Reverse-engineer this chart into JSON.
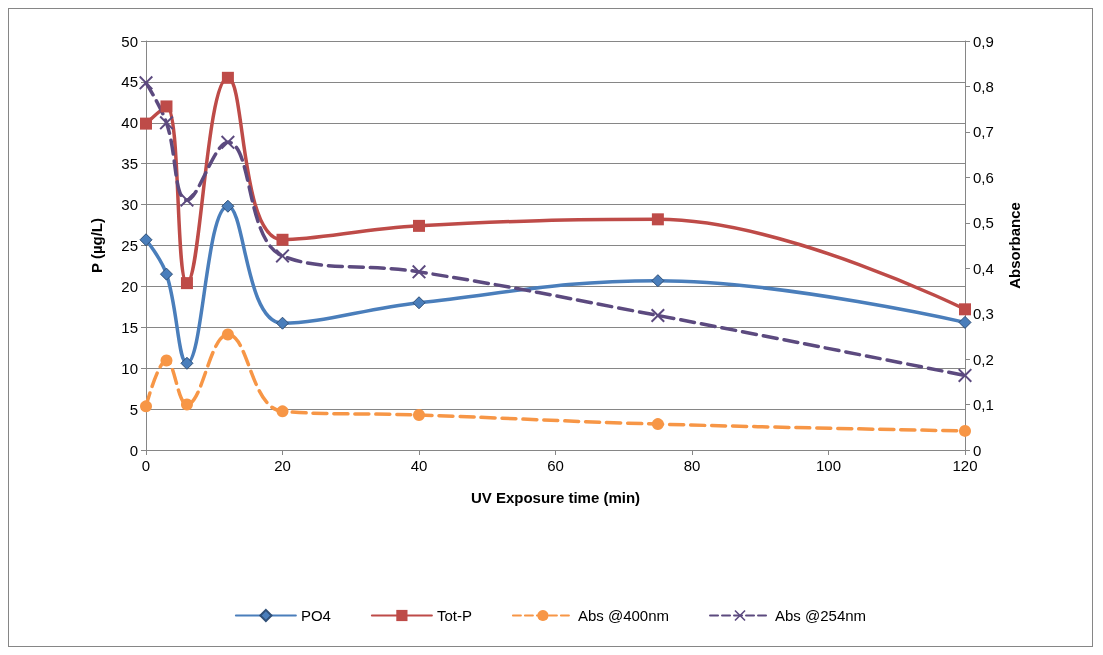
{
  "chart_data": {
    "type": "line",
    "xlabel": "UV Exposure time (min)",
    "ylabel": "P (µg/L)",
    "y2label": "Absorbance",
    "x": [
      0,
      3,
      6,
      12,
      20,
      40,
      75,
      120
    ],
    "xlim": [
      0,
      120
    ],
    "xticks": [
      0,
      20,
      40,
      60,
      80,
      100,
      120
    ],
    "ylim": [
      0,
      50
    ],
    "yticks": [
      0,
      5,
      10,
      15,
      20,
      25,
      30,
      35,
      40,
      45,
      50
    ],
    "y2lim": [
      0,
      0.9
    ],
    "y2ticks": [
      0,
      {
        "value": 0.1,
        "label": "0,1"
      },
      {
        "value": 0.2,
        "label": "0,2"
      },
      {
        "value": 0.3,
        "label": "0,3"
      },
      {
        "value": 0.4,
        "label": "0,4"
      },
      {
        "value": 0.5,
        "label": "0,5"
      },
      {
        "value": 0.6,
        "label": "0,6"
      },
      {
        "value": 0.7,
        "label": "0,7"
      },
      {
        "value": 0.8,
        "label": "0,8"
      },
      {
        "value": 0.9,
        "label": "0,9"
      }
    ],
    "grid": "y",
    "legend": "bottom",
    "series": [
      {
        "name": "PO4",
        "color": "#4a7ebb",
        "marker": "diamond",
        "line_style": "solid",
        "values": [
          25.7,
          21.5,
          10.6,
          29.8,
          15.5,
          18.0,
          20.7,
          15.6
        ]
      },
      {
        "name": "Tot-P",
        "color": "#be4b48",
        "marker": "square",
        "line_style": "solid",
        "values": [
          39.9,
          42.0,
          20.4,
          45.5,
          25.7,
          27.4,
          28.2,
          17.2
        ]
      },
      {
        "name": "Abs @400nm",
        "color": "#f79646",
        "marker": "circle",
        "line_style": "dashed",
        "axis": "y2",
        "values": [
          0.096,
          0.197,
          0.1,
          0.254,
          0.085,
          0.077,
          0.057,
          0.042
        ]
      },
      {
        "name": "Abs @254nm",
        "color": "#5c4a7f",
        "marker": "cross",
        "line_style": "dashed",
        "axis": "y2",
        "values": [
          0.808,
          0.72,
          0.55,
          0.677,
          0.427,
          0.392,
          0.296,
          0.164
        ]
      }
    ]
  }
}
